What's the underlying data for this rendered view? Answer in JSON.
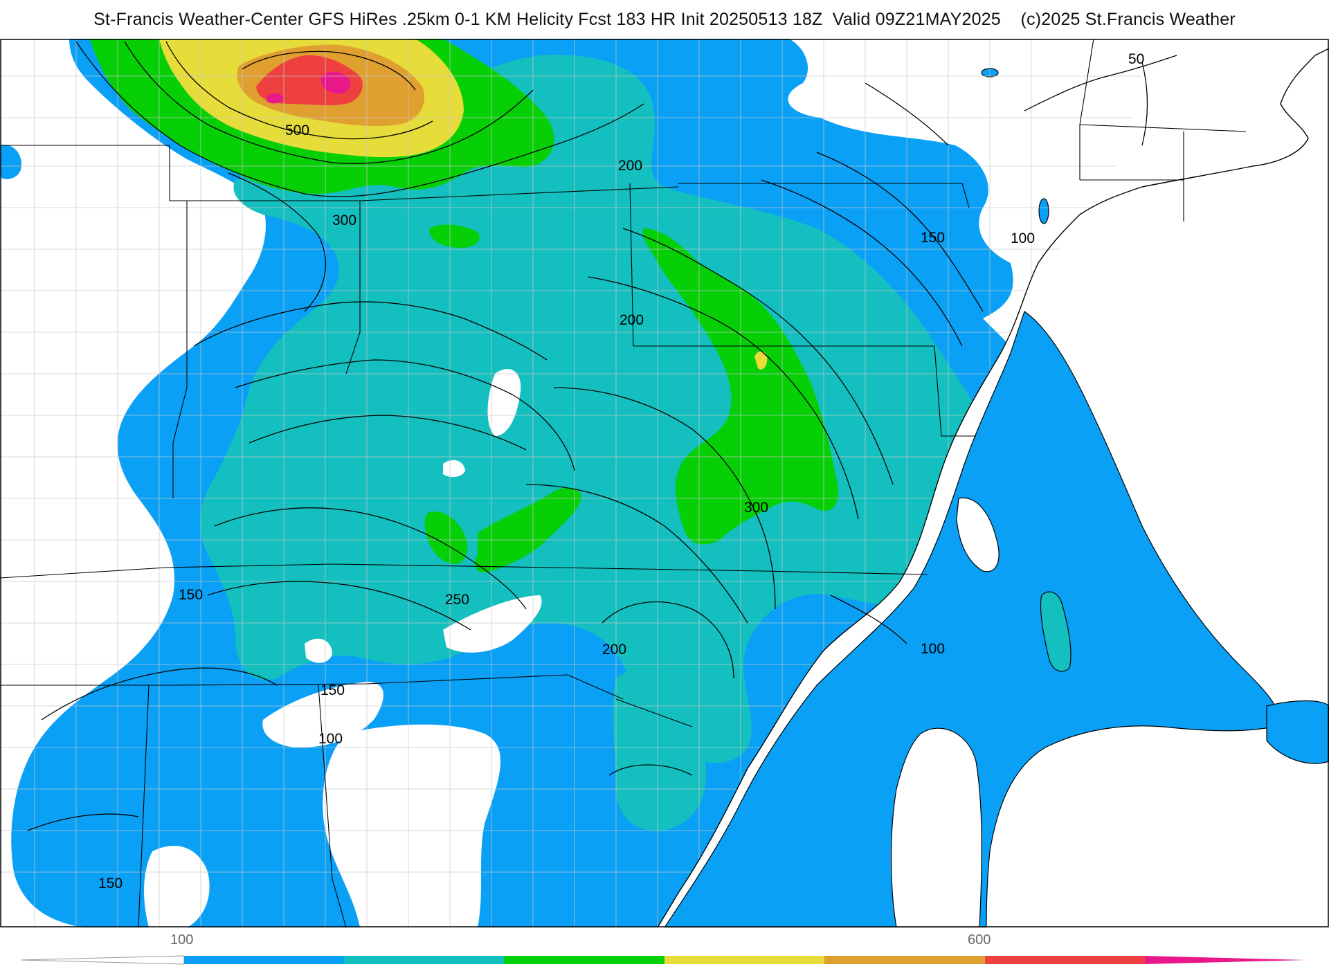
{
  "title": "St-Francis Weather-Center GFS HiRes .25km 0-1 KM Helicity Fcst 183 HR Init 20250513 18Z  Valid 09Z21MAY2025    (c)2025 St.Francis Weather",
  "colors": {
    "band_100": "#0aa0f5",
    "band_200": "#13bfbf",
    "band_300": "#06cf06",
    "band_400": "#e6dc3a",
    "band_500": "#e0a030",
    "band_600": "#ef4040",
    "band_700": "#e8188a",
    "land": "#ffffff",
    "contour": "#000000",
    "county": "#cccccc"
  },
  "contour_labels": {
    "l500": "500",
    "l300a": "300",
    "l200a": "200",
    "l200b": "200",
    "l150a": "150",
    "l100a": "100",
    "l50": "50",
    "l300b": "300",
    "l250": "250",
    "l150b": "150",
    "l150c": "150",
    "l100b": "100",
    "l200c": "200",
    "l100c": "100",
    "l150d": "150"
  },
  "legend": {
    "label_low": "100",
    "label_high": "600",
    "colors": [
      "#0aa0f5",
      "#13bfbf",
      "#06cf06",
      "#e6dc3a",
      "#e0a030",
      "#ef4040",
      "#e8188a"
    ]
  }
}
